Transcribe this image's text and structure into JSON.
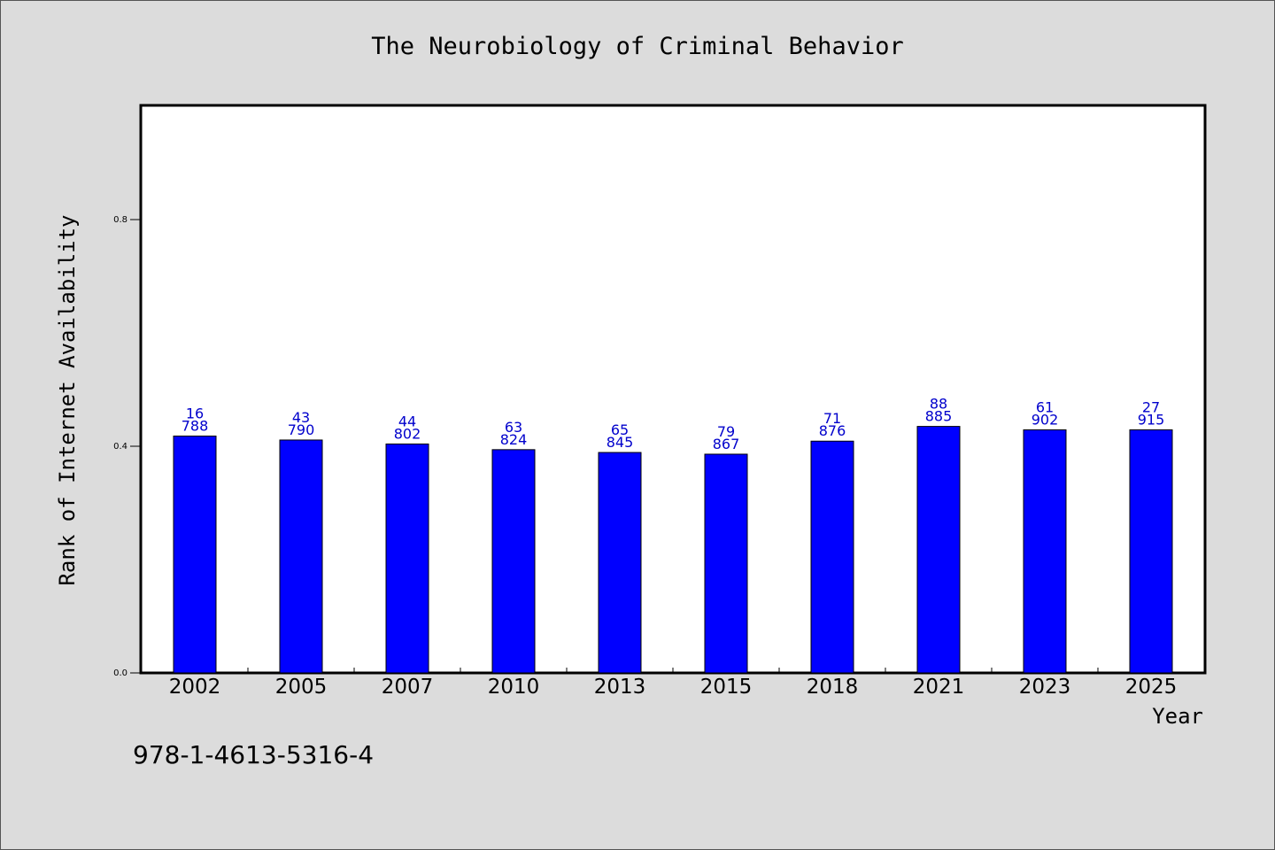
{
  "chart_data": {
    "type": "bar",
    "title": "The Neurobiology of Criminal Behavior",
    "xlabel": "Year",
    "ylabel": "Rank of Internet Availability",
    "categories": [
      "2002",
      "2005",
      "2007",
      "2010",
      "2013",
      "2015",
      "2018",
      "2021",
      "2023",
      "2025"
    ],
    "values": [
      0.418,
      0.411,
      0.404,
      0.394,
      0.389,
      0.386,
      0.409,
      0.435,
      0.429,
      0.429
    ],
    "data_labels": [
      [
        "16",
        "788"
      ],
      [
        "43",
        "790"
      ],
      [
        "44",
        "802"
      ],
      [
        "63",
        "824"
      ],
      [
        "65",
        "845"
      ],
      [
        "79",
        "867"
      ],
      [
        "71",
        "876"
      ],
      [
        "88",
        "885"
      ],
      [
        "61",
        "902"
      ],
      [
        "27",
        "915"
      ]
    ],
    "yticks": [
      "0.0",
      "0.4",
      "0.8"
    ],
    "ylim": [
      0,
      1.0
    ],
    "grid": false,
    "legend": "none",
    "bar_color": "#0000ff",
    "label_color": "#0000cc"
  },
  "footer": {
    "isbn": "978-1-4613-5316-4"
  }
}
